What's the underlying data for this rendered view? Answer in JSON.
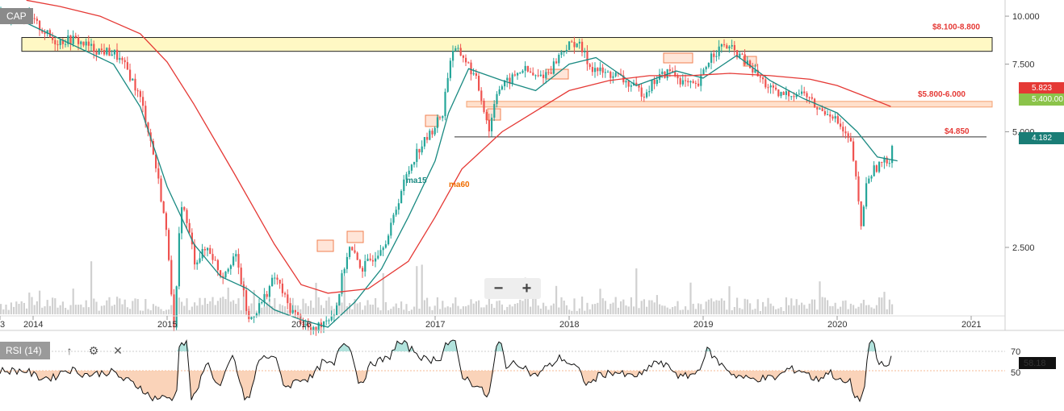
{
  "symbol": "CAP",
  "indicator": {
    "label": "RSI (14)",
    "value": "58.18",
    "upper": "70",
    "lower": "50"
  },
  "tools": {
    "up_icon": "arrow-up-icon",
    "settings_icon": "gear-icon",
    "close_icon": "close-icon"
  },
  "zoom": {
    "minus_label": "−",
    "plus_label": "+"
  },
  "tags": {
    "ma60_value": "5.823",
    "last_price": "5.400.00",
    "ma15_value": "4.182"
  },
  "colors": {
    "up": "#26a69a",
    "down": "#ef5350",
    "ma15": "#1a8a82",
    "ma60": "#e53935",
    "zone": "#fff8c4",
    "orange_zone": "#ffcba8"
  },
  "chart_data": {
    "type": "candlestick",
    "x_tick_labels": [
      "3",
      "2014",
      "2015",
      "2016",
      "2017",
      "2018",
      "2019",
      "2020",
      "2021"
    ],
    "y_tick_labels": [
      "10.000",
      "7.500",
      "5.000",
      "2.500"
    ],
    "y_ticks": [
      10.0,
      7.5,
      5.0,
      2.5
    ],
    "ylim": [
      1.0,
      10.0
    ],
    "scale": "log",
    "xlim": [
      2013.95,
      2021.2
    ],
    "annotations": [
      {
        "label": "$8.100-8.800",
        "low": 8.1,
        "high": 8.8,
        "kind": "resistance"
      },
      {
        "label": "$5.800-6.000",
        "low": 5.8,
        "high": 6.0,
        "kind": "support"
      },
      {
        "label": "$4.850",
        "level": 4.85,
        "kind": "line"
      }
    ],
    "series": [
      {
        "name": "ma15",
        "x": [
          2013.95,
          2014.3,
          2014.6,
          2014.8,
          2015.0,
          2015.2,
          2015.4,
          2015.6,
          2015.8,
          2016.0,
          2016.2,
          2016.4,
          2016.6,
          2016.8,
          2017.0,
          2017.1,
          2017.25,
          2017.5,
          2017.75,
          2018.0,
          2018.2,
          2018.5,
          2018.8,
          2019.0,
          2019.25,
          2019.5,
          2019.75,
          2020.0,
          2020.15,
          2020.3,
          2020.45
        ],
        "values": [
          9.6,
          8.4,
          7.5,
          5.8,
          3.6,
          2.55,
          2.1,
          1.95,
          1.72,
          1.62,
          1.55,
          1.8,
          2.2,
          3.0,
          4.2,
          5.6,
          7.3,
          6.8,
          6.4,
          7.5,
          7.8,
          6.6,
          7.2,
          6.9,
          7.9,
          6.8,
          6.1,
          5.6,
          5.0,
          4.3,
          4.2
        ]
      },
      {
        "name": "ma60",
        "x": [
          2013.95,
          2014.2,
          2014.5,
          2014.8,
          2015.0,
          2015.2,
          2015.5,
          2015.8,
          2016.0,
          2016.2,
          2016.5,
          2016.8,
          2017.0,
          2017.2,
          2017.5,
          2017.8,
          2018.0,
          2018.3,
          2018.6,
          2018.9,
          2019.2,
          2019.5,
          2019.8,
          2020.0,
          2020.2,
          2020.4
        ],
        "values": [
          11.0,
          10.6,
          10.0,
          9.0,
          7.6,
          5.9,
          3.9,
          2.55,
          2.0,
          1.9,
          1.95,
          2.3,
          3.0,
          4.0,
          5.0,
          5.8,
          6.4,
          6.8,
          7.0,
          7.0,
          7.1,
          7.0,
          6.85,
          6.6,
          6.2,
          5.82
        ]
      },
      {
        "name": "close",
        "x": [
          2013.95,
          2014.05,
          2014.15,
          2014.3,
          2014.45,
          2014.6,
          2014.7,
          2014.8,
          2014.9,
          2015.0,
          2015.05,
          2015.1,
          2015.2,
          2015.3,
          2015.4,
          2015.5,
          2015.6,
          2015.7,
          2015.8,
          2015.9,
          2016.0,
          2016.08,
          2016.15,
          2016.25,
          2016.35,
          2016.45,
          2016.55,
          2016.65,
          2016.75,
          2016.85,
          2016.95,
          2017.05,
          2017.12,
          2017.2,
          2017.3,
          2017.4,
          2017.45,
          2017.55,
          2017.65,
          2017.75,
          2017.85,
          2017.95,
          2018.05,
          2018.15,
          2018.25,
          2018.35,
          2018.45,
          2018.55,
          2018.65,
          2018.75,
          2018.85,
          2018.95,
          2019.05,
          2019.15,
          2019.25,
          2019.35,
          2019.45,
          2019.55,
          2019.65,
          2019.75,
          2019.85,
          2019.95,
          2020.05,
          2020.1,
          2020.17,
          2020.22,
          2020.3,
          2020.38,
          2020.45
        ],
        "values": [
          10.0,
          9.3,
          8.6,
          8.7,
          8.2,
          8.0,
          7.2,
          6.0,
          4.2,
          2.5,
          1.4,
          3.3,
          2.3,
          2.5,
          2.1,
          2.4,
          1.6,
          1.8,
          2.1,
          1.75,
          1.6,
          1.5,
          1.6,
          1.7,
          2.5,
          2.2,
          2.4,
          2.7,
          3.6,
          4.4,
          4.9,
          5.6,
          8.2,
          7.9,
          6.8,
          5.0,
          6.4,
          6.8,
          7.3,
          6.9,
          7.2,
          8.2,
          8.6,
          7.4,
          7.1,
          7.0,
          6.6,
          6.3,
          6.9,
          7.2,
          6.7,
          6.5,
          7.9,
          8.4,
          8.0,
          7.3,
          6.7,
          6.2,
          6.3,
          6.3,
          5.7,
          5.6,
          4.9,
          4.6,
          2.8,
          3.8,
          4.1,
          4.2,
          5.4
        ]
      }
    ]
  }
}
